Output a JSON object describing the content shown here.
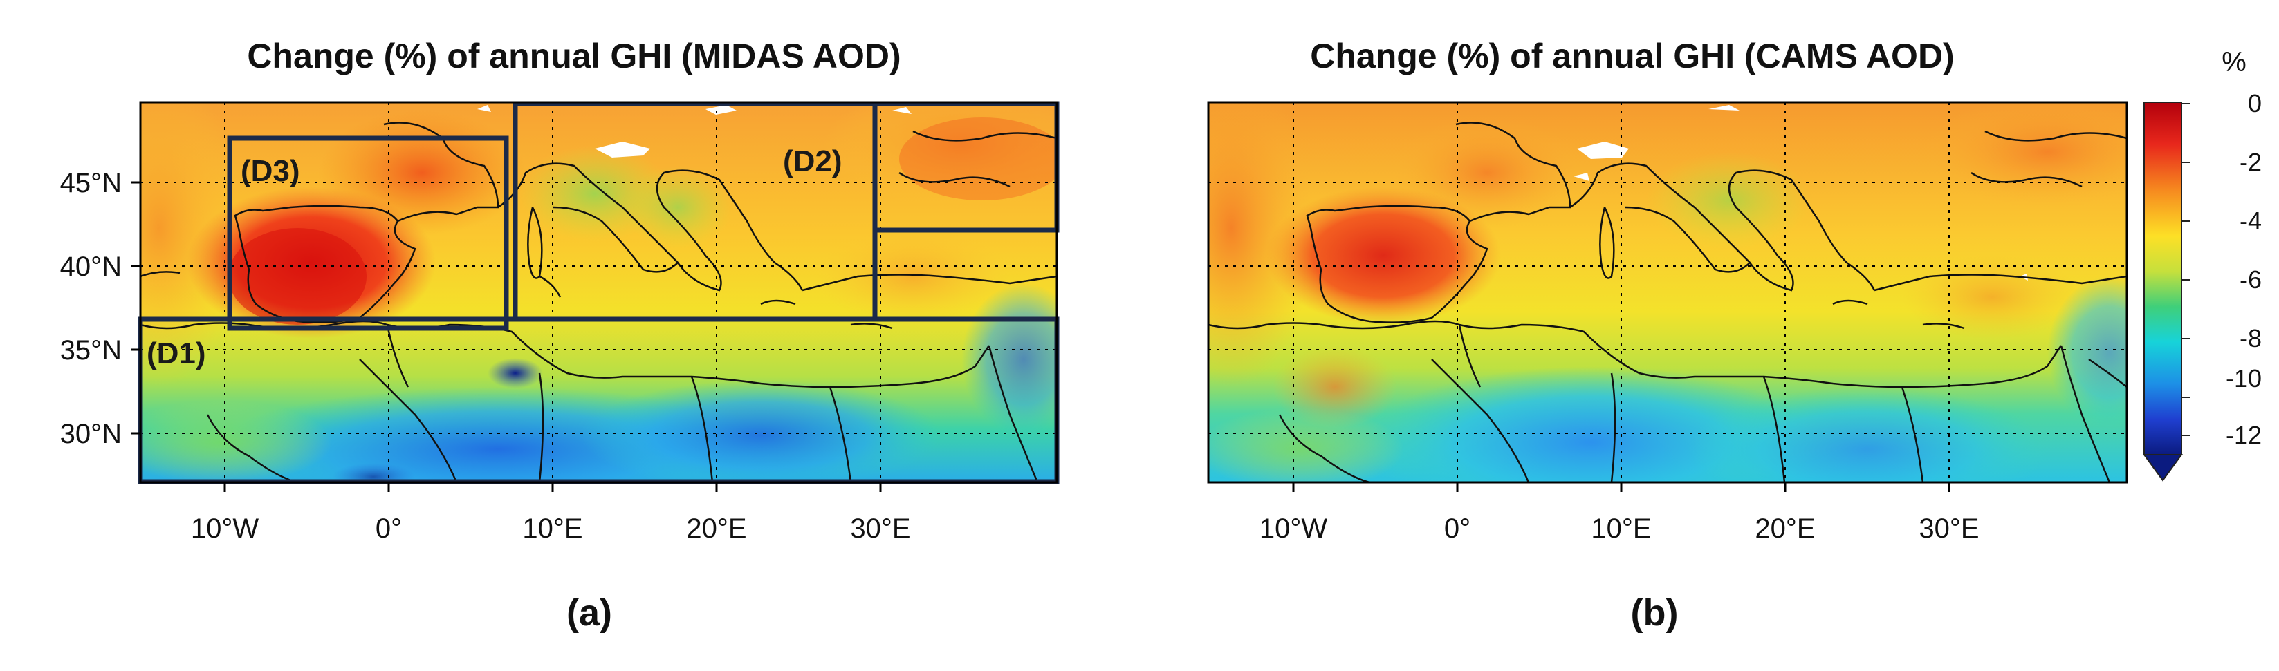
{
  "panels": [
    {
      "title": "Change (%) of annual GHI (MIDAS AOD)",
      "label": "(a)",
      "regions": [
        "(D1)",
        "(D2)",
        "(D3)"
      ]
    },
    {
      "title": "Change (%) of annual GHI (CAMS AOD)",
      "label": "(b)"
    }
  ],
  "x_ticks": [
    "10°W",
    "0°",
    "10°E",
    "20°E",
    "30°E"
  ],
  "y_ticks": [
    "45°N",
    "40°N",
    "35°N",
    "30°N"
  ],
  "colorbar": {
    "unit": "%",
    "ticks": [
      "0",
      "-2",
      "-4",
      "-6",
      "-8",
      "-10",
      "-12"
    ]
  },
  "colors": {
    "scale": [
      "#d7191c",
      "#f46d2d",
      "#fdae40",
      "#ffea2a",
      "#a6e14a",
      "#34d07e",
      "#15c8d6",
      "#1e90ff",
      "#1f3fd0",
      "#0a1a7a"
    ],
    "frame": "#000000",
    "region_box": "#1b2a4a"
  }
}
